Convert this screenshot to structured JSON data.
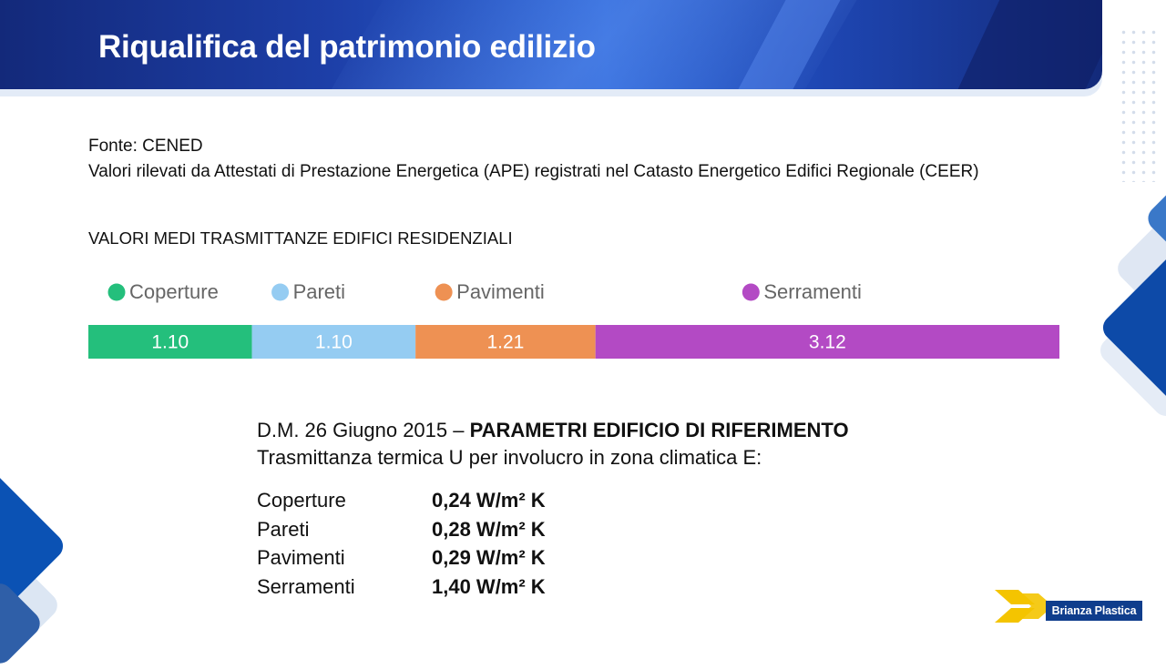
{
  "header": {
    "title": "Riqualifica del patrimonio edilizio"
  },
  "source": {
    "line1": "Fonte: CENED",
    "line2": "Valori rilevati da Attestati di Prestazione Energetica (APE) registrati nel Catasto Energetico Edifici Regionale (CEER)"
  },
  "section_title": "VALORI MEDI TRASMITTANZE EDIFICI RESIDENZIALI",
  "chart_data": {
    "type": "bar",
    "orientation": "horizontal-stacked",
    "categories": [
      "Coperture",
      "Pareti",
      "Pavimenti",
      "Serramenti"
    ],
    "values": [
      1.1,
      1.1,
      1.21,
      3.12
    ],
    "value_labels": [
      "1.10",
      "1.10",
      "1.21",
      "3.12"
    ],
    "colors": [
      "#24bf7c",
      "#95ccf2",
      "#ee9153",
      "#b34ac4"
    ],
    "title": "",
    "xlabel": "",
    "ylabel": "",
    "legend": "top"
  },
  "reference": {
    "line1_prefix": "D.M.  26 Giugno 2015 – ",
    "line1_bold": "PARAMETRI EDIFICIO DI RIFERIMENTO",
    "line2": "Trasmittanza termica U per involucro in zona climatica E:",
    "rows": [
      {
        "name": "Coperture",
        "value": "0,24 W/m² K"
      },
      {
        "name": "Pareti",
        "value": "0,28 W/m² K"
      },
      {
        "name": "Pavimenti",
        "value": "0,29 W/m² K"
      },
      {
        "name": "Serramenti",
        "value": "1,40 W/m² K"
      }
    ]
  },
  "logo": {
    "text": "Brianza Plastica",
    "color": "#0f3d8c",
    "accent": "#f4c400"
  }
}
